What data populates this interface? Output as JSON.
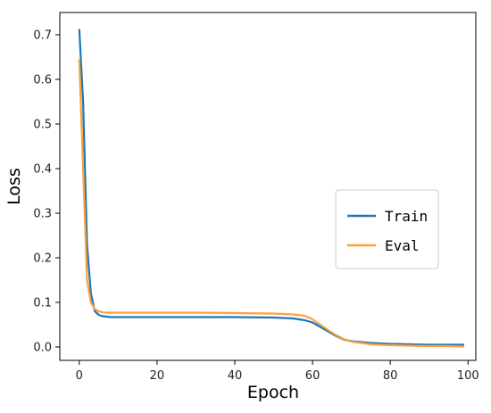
{
  "chart_data": {
    "type": "line",
    "xlabel": "Epoch",
    "ylabel": "Loss",
    "xlim": [
      -5,
      102
    ],
    "ylim": [
      -0.03,
      0.75
    ],
    "xticks": [
      "0",
      "20",
      "40",
      "60",
      "80",
      "100"
    ],
    "yticks": [
      "0.0",
      "0.1",
      "0.2",
      "0.3",
      "0.4",
      "0.5",
      "0.6",
      "0.7"
    ],
    "grid": false,
    "legend_position": "right",
    "series": [
      {
        "name": "Train",
        "color": "#1f77b4",
        "x": [
          0,
          1,
          2,
          3,
          4,
          5,
          6,
          7,
          8,
          10,
          15,
          20,
          30,
          40,
          50,
          55,
          58,
          60,
          62,
          64,
          66,
          68,
          70,
          75,
          80,
          85,
          90,
          95,
          99
        ],
        "y": [
          0.713,
          0.55,
          0.23,
          0.12,
          0.08,
          0.072,
          0.069,
          0.068,
          0.067,
          0.067,
          0.067,
          0.067,
          0.067,
          0.067,
          0.066,
          0.064,
          0.06,
          0.055,
          0.045,
          0.035,
          0.025,
          0.017,
          0.013,
          0.009,
          0.007,
          0.006,
          0.005,
          0.005,
          0.005
        ]
      },
      {
        "name": "Eval",
        "color": "#ff9f3a",
        "x": [
          0,
          1,
          2,
          3,
          4,
          5,
          6,
          7,
          8,
          10,
          15,
          20,
          30,
          40,
          50,
          55,
          58,
          60,
          62,
          64,
          66,
          68,
          70,
          75,
          80,
          85,
          90,
          95,
          99
        ],
        "y": [
          0.645,
          0.4,
          0.15,
          0.1,
          0.085,
          0.08,
          0.078,
          0.077,
          0.077,
          0.077,
          0.077,
          0.077,
          0.077,
          0.076,
          0.075,
          0.073,
          0.07,
          0.062,
          0.05,
          0.038,
          0.027,
          0.018,
          0.012,
          0.006,
          0.004,
          0.003,
          0.002,
          0.002,
          0.001
        ]
      }
    ]
  }
}
